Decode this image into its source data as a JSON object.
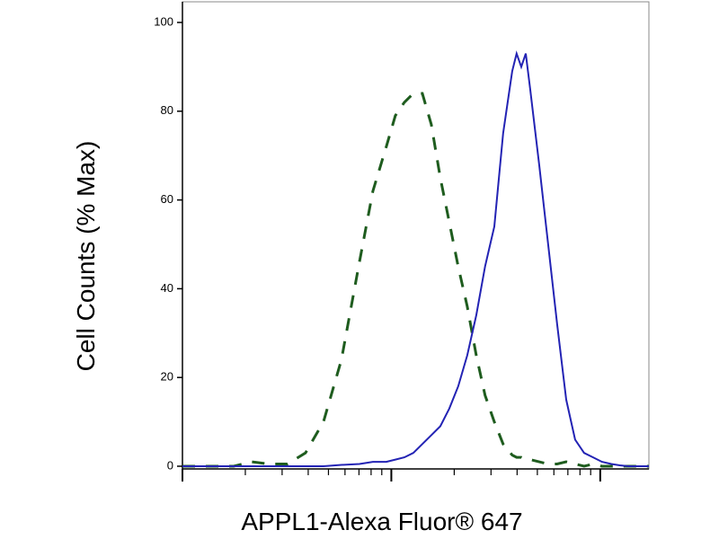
{
  "chart_data": {
    "type": "line",
    "xlabel": "APPL1-Alexa Fluor® 647",
    "ylabel": "Cell Counts (% Max)",
    "xscale": "log",
    "x": [
      1,
      1.31,
      1.76,
      2.14,
      2.61,
      3.18,
      3.88,
      4.73,
      5.77,
      7.03,
      8.16,
      9.46,
      10.45,
      11.54,
      12.75,
      14.07,
      15.54,
      17.16,
      18.94,
      20.9,
      23.1,
      25.5,
      28.1,
      31.1,
      34.3,
      37.9,
      39.8,
      41.9,
      44.0,
      46.2,
      51.0,
      56.3,
      62.2,
      68.7,
      75.8,
      83.7,
      92.4,
      102,
      113,
      124,
      137,
      152,
      171
    ],
    "series": [
      {
        "color": "#1e5c1e",
        "dash": true,
        "values": [
          0,
          0,
          0,
          1,
          0.5,
          0.5,
          3,
          10,
          24,
          46,
          62,
          72,
          79,
          82,
          84,
          84,
          77,
          65,
          55,
          45,
          36,
          25,
          16,
          10,
          5,
          2.5,
          2,
          2,
          1.5,
          1.5,
          1,
          0.5,
          0.5,
          1,
          0.5,
          0,
          0.5,
          0,
          0,
          0,
          0,
          0,
          0
        ]
      },
      {
        "color": "#2323b4",
        "dash": false,
        "values": [
          0,
          0,
          0,
          0,
          0,
          0,
          0,
          0,
          0.3,
          0.5,
          1,
          1,
          1.5,
          2,
          3,
          5,
          7,
          9,
          13,
          18,
          25,
          34,
          45,
          54,
          75,
          89,
          93,
          90,
          93,
          85,
          68,
          50,
          32,
          15,
          6,
          3,
          2,
          1,
          0.5,
          0.2,
          0,
          0,
          0
        ]
      }
    ],
    "xlim": [
      1,
      171
    ],
    "xticks": [
      1,
      2,
      3,
      4,
      5,
      6,
      7,
      8,
      9,
      10,
      20,
      30,
      40,
      50,
      60,
      70,
      80,
      90,
      100
    ],
    "ylim": [
      0,
      100
    ],
    "yticks": [
      0,
      20,
      40,
      60,
      80,
      100
    ]
  }
}
